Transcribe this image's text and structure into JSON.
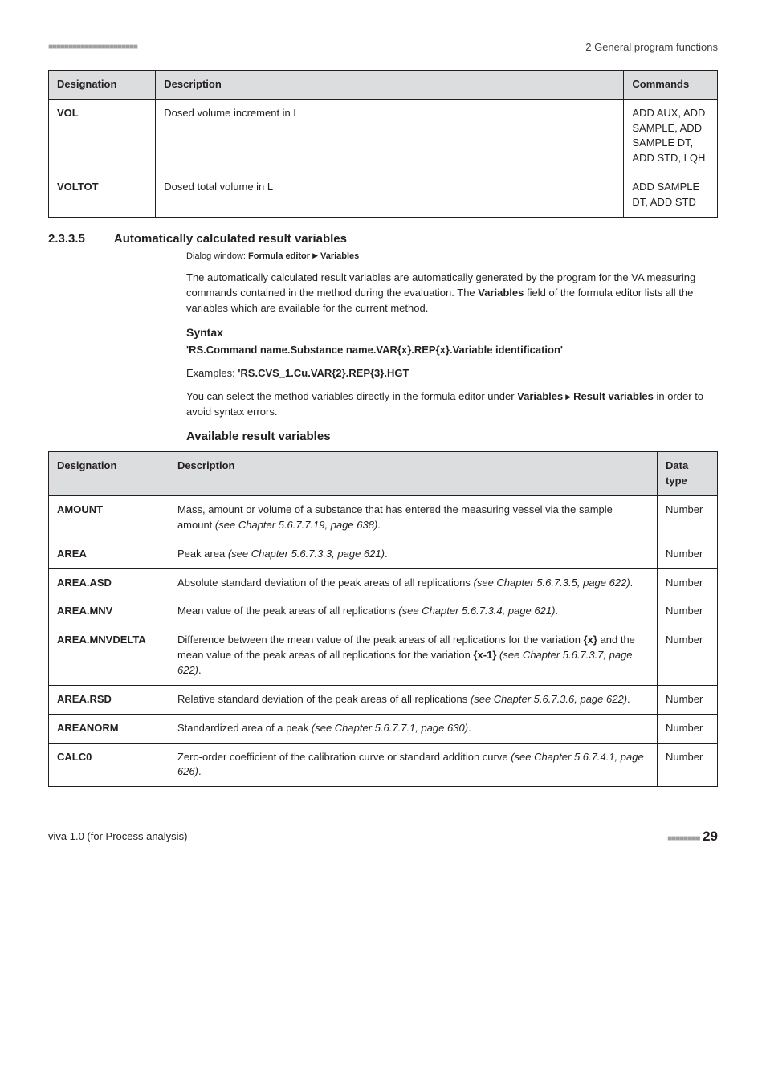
{
  "header": {
    "dots": "■■■■■■■■■■■■■■■■■■■■■■",
    "right": "2 General program functions"
  },
  "table1": {
    "headers": {
      "c1": "Designation",
      "c2": "Description",
      "c3": "Commands"
    },
    "rows": [
      {
        "c1": "VOL",
        "c2": "Dosed volume increment in L",
        "c3": "ADD AUX, ADD SAMPLE, ADD SAMPLE DT, ADD STD, LQH"
      },
      {
        "c1": "VOLTOT",
        "c2": "Dosed total volume in L",
        "c3": "ADD SAMPLE DT, ADD STD"
      }
    ]
  },
  "sec": {
    "num": "2.3.3.5",
    "title": "Automatically calculated result variables",
    "dialog_prefix": "Dialog window: ",
    "dialog_b1": "Formula editor",
    "dialog_b2": "Variables",
    "para1a": "The automatically calculated result variables are automatically generated by the program for the VA measuring commands contained in the method during the evaluation. The ",
    "para1b": "Variables",
    "para1c": " field of the formula editor lists all the variables which are available for the current method.",
    "syntax_h": "Syntax",
    "syntax_line": "'RS.Command name.Substance name.VAR{x}.REP{x}.Variable identification'",
    "examples_prefix": "Examples: ",
    "examples_code": "'RS.CVS_1.Cu.VAR{2}.REP{3}.HGT",
    "para2a": "You can select the method variables directly in the formula editor under ",
    "para2b": "Variables",
    "para2c": "Result variables",
    "para2d": " in order to avoid syntax errors.",
    "avail_h": "Available result variables"
  },
  "table2": {
    "headers": {
      "c1": "Designation",
      "c2": "Description",
      "c3": "Data type"
    },
    "rows": [
      {
        "c1": "AMOUNT",
        "c2a": "Mass, amount or volume of a substance that has entered the measuring vessel via the sample amount ",
        "c2b": "(see Chapter 5.6.7.7.19, page 638)",
        "c2c": ".",
        "c3": "Number"
      },
      {
        "c1": "AREA",
        "c2a": "Peak area ",
        "c2b": "(see Chapter 5.6.7.3.3, page 621)",
        "c2c": ".",
        "c3": "Number"
      },
      {
        "c1": "AREA.ASD",
        "c2a": "Absolute standard deviation of the peak areas of all replications ",
        "c2b": "(see Chapter 5.6.7.3.5, page 622)",
        "c2c": ".",
        "c3": "Number"
      },
      {
        "c1": "AREA.MNV",
        "c2a": "Mean value of the peak areas of all replications ",
        "c2b": "(see Chapter 5.6.7.3.4, page 621)",
        "c2c": ".",
        "c3": "Number"
      },
      {
        "c1": "AREA.MNVDELTA",
        "c2a": "Difference between the mean value of the peak areas of all replications for the variation ",
        "c2key1": "{x}",
        "c2b": " and the mean value of the peak areas of all replications for the variation ",
        "c2key2": "{x-1}",
        "c2c": " ",
        "c2d": "(see Chapter 5.6.7.3.7, page 622)",
        "c2e": ".",
        "c3": "Number"
      },
      {
        "c1": "AREA.RSD",
        "c2a": "Relative standard deviation of the peak areas of all replications ",
        "c2b": "(see Chapter 5.6.7.3.6, page 622)",
        "c2c": ".",
        "c3": "Number"
      },
      {
        "c1": "AREANORM",
        "c2a": "Standardized area of a peak ",
        "c2b": "(see Chapter 5.6.7.7.1, page 630)",
        "c2c": ".",
        "c3": "Number"
      },
      {
        "c1": "CALC0",
        "c2a": "Zero-order coefficient of the calibration curve or standard addition curve ",
        "c2b": "(see Chapter 5.6.7.4.1, page 626)",
        "c2c": ".",
        "c3": "Number"
      }
    ]
  },
  "footer": {
    "left": "viva 1.0 (for Process analysis)",
    "dots": "■■■■■■■■",
    "page": "29"
  }
}
